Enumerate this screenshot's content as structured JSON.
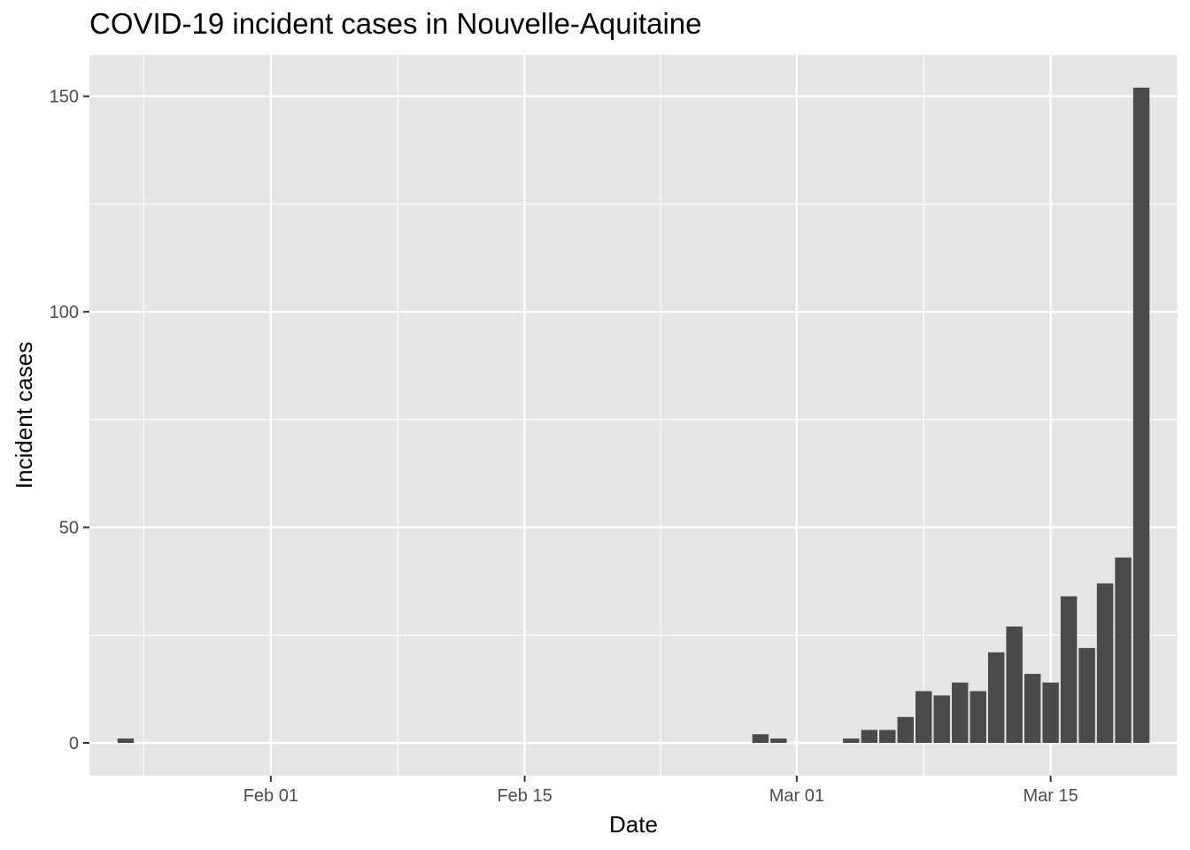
{
  "chart_data": {
    "type": "bar",
    "title": "COVID-19 incident cases in Nouvelle-Aquitaine",
    "xlabel": "Date",
    "ylabel": "Incident cases",
    "x_axis": {
      "kind": "date",
      "range": [
        "2020-01-22",
        "2020-03-22"
      ],
      "ticks": [
        {
          "date": "2020-02-01",
          "label": "Feb 01"
        },
        {
          "date": "2020-02-15",
          "label": "Feb 15"
        },
        {
          "date": "2020-03-01",
          "label": "Mar 01"
        },
        {
          "date": "2020-03-15",
          "label": "Mar 15"
        }
      ]
    },
    "y_axis": {
      "range": [
        -7.6,
        159.6
      ],
      "ticks": [
        0,
        50,
        100,
        150
      ]
    },
    "grid": true,
    "legend": "none",
    "colors": {
      "panel": "#e5e5e5",
      "grid": "#ffffff",
      "bar": "#4a4a4a",
      "tick_text": "#4d4d4d"
    },
    "series": [
      {
        "dates": [
          "2020-01-24",
          "2020-02-28",
          "2020-02-29",
          "2020-03-04",
          "2020-03-05",
          "2020-03-06",
          "2020-03-07",
          "2020-03-08",
          "2020-03-09",
          "2020-03-10",
          "2020-03-11",
          "2020-03-12",
          "2020-03-13",
          "2020-03-14",
          "2020-03-15",
          "2020-03-16",
          "2020-03-17",
          "2020-03-18",
          "2020-03-19",
          "2020-03-20"
        ],
        "values": [
          1,
          2,
          1,
          1,
          3,
          3,
          6,
          12,
          11,
          14,
          12,
          21,
          27,
          16,
          14,
          34,
          22,
          37,
          43,
          152
        ]
      }
    ]
  }
}
